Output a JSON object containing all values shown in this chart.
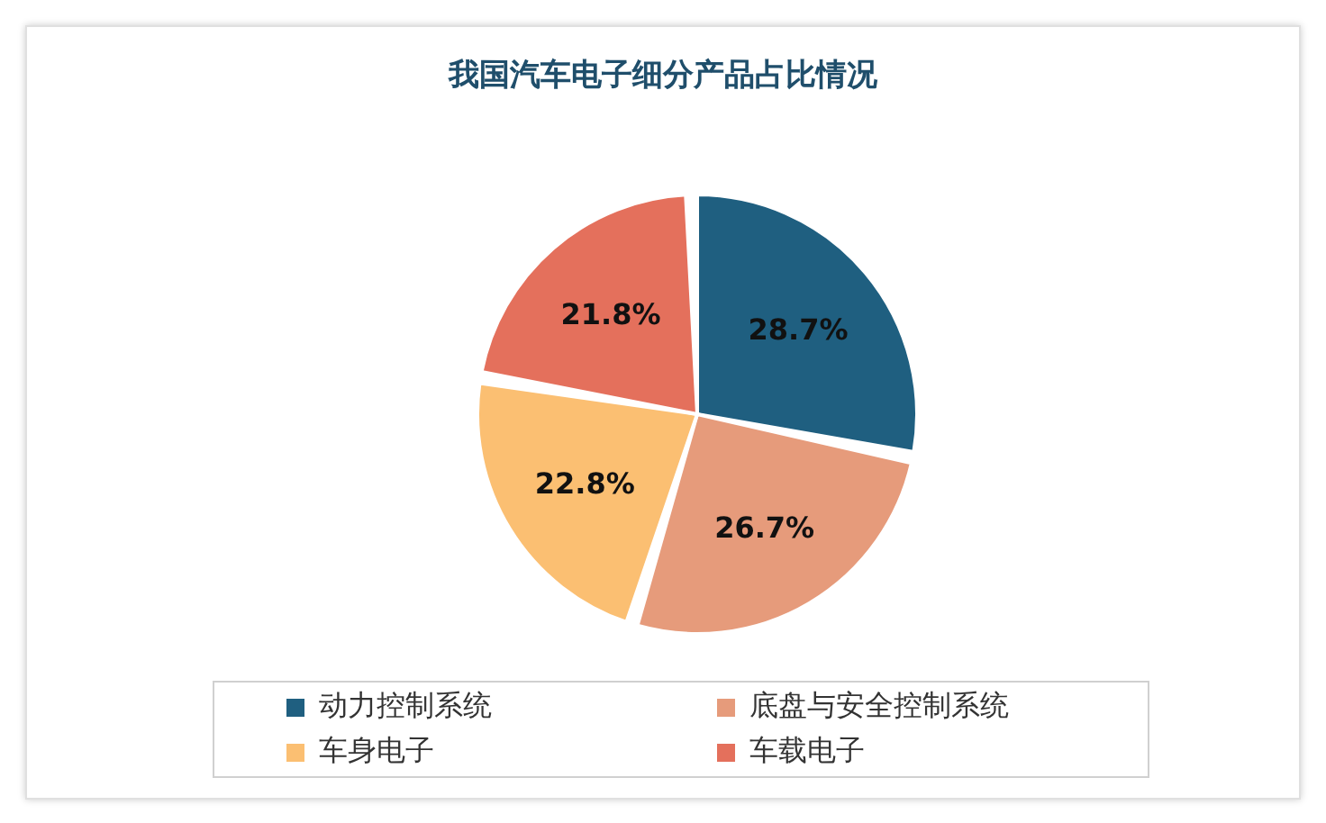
{
  "chart_data": {
    "type": "pie",
    "title": "我国汽车电子细分产品占比情况",
    "categories": [
      "动力控制系统",
      "底盘与安全控制系统",
      "车身电子",
      "车载电子"
    ],
    "values": [
      28.7,
      26.7,
      22.8,
      21.8
    ],
    "colors": [
      "#1f5f80",
      "#e69b7b",
      "#fbbf72",
      "#e4705c"
    ],
    "value_labels": [
      "28.7%",
      "26.7%",
      "22.8%",
      "21.8%"
    ],
    "legend": "bottom"
  }
}
